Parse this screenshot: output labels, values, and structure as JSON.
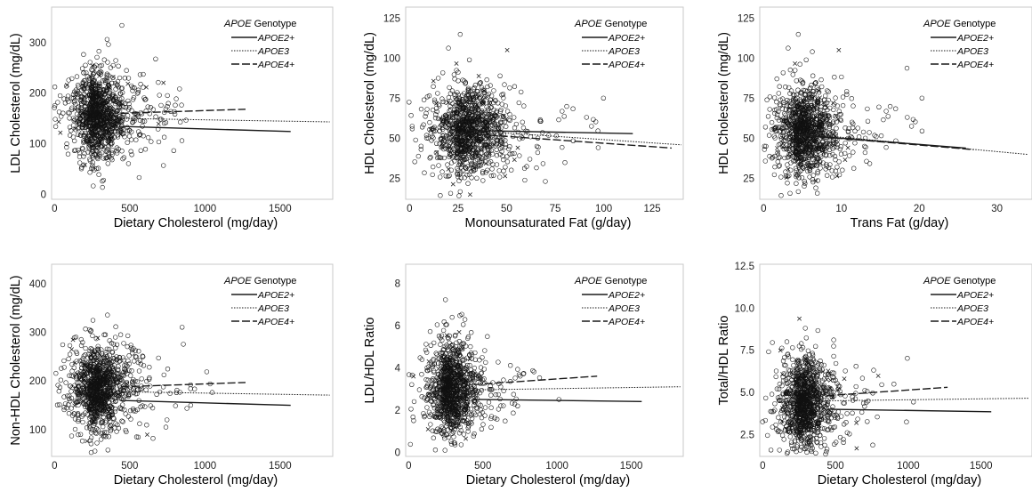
{
  "figure": {
    "legend_title_italic": "APOE",
    "legend_title_plain": " Genotype",
    "genotypes": [
      {
        "label": "APOE2+",
        "style": "solid"
      },
      {
        "label": "APOE3",
        "style": "dotted"
      },
      {
        "label": "APOE4+",
        "style": "dashed"
      }
    ]
  },
  "chart_data": [
    {
      "type": "scatter",
      "title": "",
      "xlabel": "Dietary Cholesterol (mg/day)",
      "ylabel": "LDL Cholesterol (mg/dL)",
      "xlim": [
        -20,
        1850
      ],
      "ylim": [
        -10,
        370
      ],
      "xticks": [
        0,
        500,
        1000,
        1500
      ],
      "yticks": [
        0,
        100,
        200,
        300
      ],
      "legend": "top-right",
      "cloud": {
        "x_center": 230,
        "x_spread": 120,
        "y_center": 155,
        "y_spread": 40
      },
      "series": [
        {
          "name": "APOE2+",
          "style": "solid",
          "x": [
            440,
            1570
          ],
          "y": [
            134,
            124
          ]
        },
        {
          "name": "APOE3",
          "style": "dotted",
          "x": [
            440,
            1830
          ],
          "y": [
            150,
            143
          ]
        },
        {
          "name": "APOE4+",
          "style": "dashed",
          "x": [
            440,
            1270
          ],
          "y": [
            160,
            168
          ]
        }
      ]
    },
    {
      "type": "scatter",
      "title": "",
      "xlabel": "Monounsaturated Fat (g/day)",
      "ylabel": "HDL Cholesterol (mg/dL)",
      "xlim": [
        -2,
        141
      ],
      "ylim": [
        12,
        132
      ],
      "xticks": [
        0,
        25,
        50,
        75,
        100,
        125
      ],
      "yticks": [
        25,
        50,
        75,
        100,
        125
      ],
      "legend": "top-right",
      "cloud": {
        "x_center": 24,
        "x_spread": 13,
        "y_center": 55,
        "y_spread": 13
      },
      "series": [
        {
          "name": "APOE2+",
          "style": "solid",
          "x": [
            30,
            115
          ],
          "y": [
            55,
            53
          ]
        },
        {
          "name": "APOE3",
          "style": "dotted",
          "x": [
            30,
            140
          ],
          "y": [
            55,
            46
          ]
        },
        {
          "name": "APOE4+",
          "style": "dashed",
          "x": [
            30,
            135
          ],
          "y": [
            53,
            44
          ]
        }
      ]
    },
    {
      "type": "scatter",
      "title": "",
      "xlabel": "Trans Fat (g/day)",
      "ylabel": "HDL Cholesterol (mg/dL)",
      "xlim": [
        -0.5,
        34.5
      ],
      "ylim": [
        12,
        132
      ],
      "xticks": [
        0,
        10,
        20,
        30
      ],
      "yticks": [
        25,
        50,
        75,
        100,
        125
      ],
      "legend": "top-right",
      "cloud": {
        "x_center": 4,
        "x_spread": 2.8,
        "y_center": 55,
        "y_spread": 13
      },
      "series": [
        {
          "name": "APOE2+",
          "style": "solid",
          "x": [
            5,
            26
          ],
          "y": [
            52,
            44
          ]
        },
        {
          "name": "APOE3",
          "style": "dotted",
          "x": [
            5,
            34
          ],
          "y": [
            53,
            40
          ]
        },
        {
          "name": "APOE4+",
          "style": "dashed",
          "x": [
            5,
            27
          ],
          "y": [
            52,
            43
          ]
        }
      ]
    },
    {
      "type": "scatter",
      "title": "",
      "xlabel": "Dietary Cholesterol (mg/day)",
      "ylabel": "Non-HDL Cholesterol (mg/dL)",
      "xlim": [
        -20,
        1850
      ],
      "ylim": [
        45,
        440
      ],
      "xticks": [
        0,
        500,
        1000,
        1500
      ],
      "yticks": [
        100,
        200,
        300,
        400
      ],
      "legend": "top-right",
      "cloud": {
        "x_center": 230,
        "x_spread": 120,
        "y_center": 185,
        "y_spread": 42
      },
      "series": [
        {
          "name": "APOE2+",
          "style": "solid",
          "x": [
            440,
            1570
          ],
          "y": [
            160,
            150
          ]
        },
        {
          "name": "APOE3",
          "style": "dotted",
          "x": [
            440,
            1830
          ],
          "y": [
            178,
            171
          ]
        },
        {
          "name": "APOE4+",
          "style": "dashed",
          "x": [
            440,
            1270
          ],
          "y": [
            188,
            197
          ]
        }
      ]
    },
    {
      "type": "scatter",
      "title": "",
      "xlabel": "Dietary Cholesterol (mg/day)",
      "ylabel": "LDL/HDL Ratio",
      "xlim": [
        -20,
        1850
      ],
      "ylim": [
        -0.2,
        8.9
      ],
      "xticks": [
        0,
        500,
        1000,
        1500
      ],
      "yticks": [
        0,
        2,
        4,
        6,
        8
      ],
      "legend": "top-right",
      "cloud": {
        "x_center": 230,
        "x_spread": 120,
        "y_center": 3.0,
        "y_spread": 1.0
      },
      "series": [
        {
          "name": "APOE2+",
          "style": "solid",
          "x": [
            440,
            1570
          ],
          "y": [
            2.5,
            2.4
          ]
        },
        {
          "name": "APOE3",
          "style": "dotted",
          "x": [
            440,
            1830
          ],
          "y": [
            2.95,
            3.1
          ]
        },
        {
          "name": "APOE4+",
          "style": "dashed",
          "x": [
            440,
            1270
          ],
          "y": [
            3.2,
            3.6
          ]
        }
      ]
    },
    {
      "type": "scatter",
      "title": "",
      "xlabel": "Dietary Cholesterol (mg/day)",
      "ylabel": "Total/HDL Ratio",
      "xlim": [
        -20,
        1850
      ],
      "ylim": [
        1.2,
        12.6
      ],
      "xticks": [
        0,
        500,
        1000,
        1500
      ],
      "yticks": [
        2.5,
        5.0,
        7.5,
        10.0,
        12.5
      ],
      "legend": "top-right",
      "cloud": {
        "x_center": 230,
        "x_spread": 120,
        "y_center": 4.4,
        "y_spread": 1.3
      },
      "series": [
        {
          "name": "APOE2+",
          "style": "solid",
          "x": [
            440,
            1570
          ],
          "y": [
            4.0,
            3.85
          ]
        },
        {
          "name": "APOE3",
          "style": "dotted",
          "x": [
            440,
            1830
          ],
          "y": [
            4.5,
            4.65
          ]
        },
        {
          "name": "APOE4+",
          "style": "dashed",
          "x": [
            440,
            1270
          ],
          "y": [
            4.8,
            5.3
          ]
        }
      ]
    }
  ]
}
